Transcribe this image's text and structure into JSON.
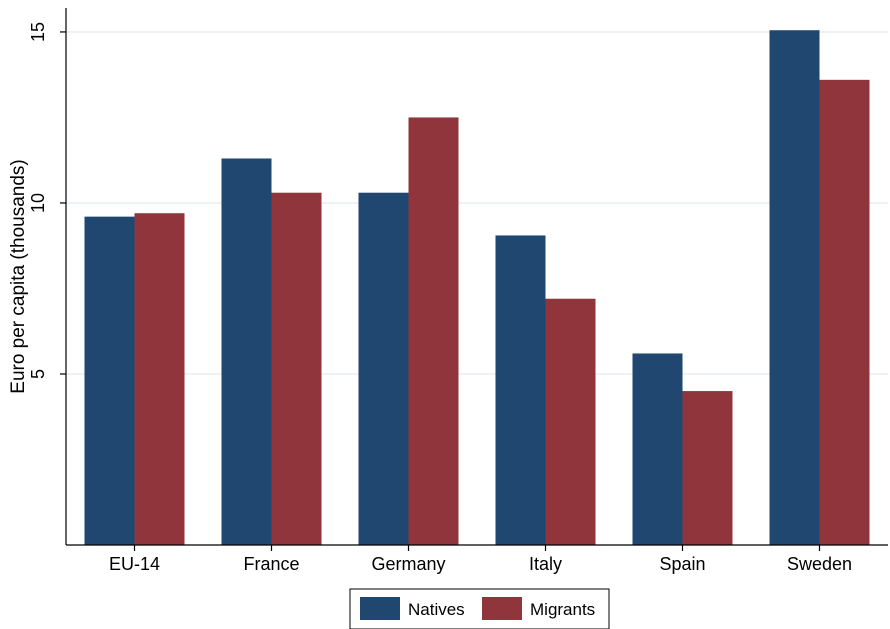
{
  "chart_data": {
    "type": "bar",
    "categories": [
      "EU-14",
      "France",
      "Germany",
      "Italy",
      "Spain",
      "Sweden"
    ],
    "series": [
      {
        "name": "Natives",
        "color": "#1f4770",
        "values": [
          9.6,
          11.3,
          10.3,
          9.05,
          5.6,
          15.05
        ]
      },
      {
        "name": "Migrants",
        "color": "#90353b",
        "values": [
          9.7,
          10.3,
          12.5,
          7.2,
          4.5,
          13.6
        ]
      }
    ],
    "ylabel": "Euro per capita (thousands)",
    "xlabel": "",
    "ylim": [
      0,
      15.7
    ],
    "yticks": [
      5,
      10,
      15
    ],
    "grid": true,
    "legend_position": "bottom"
  }
}
